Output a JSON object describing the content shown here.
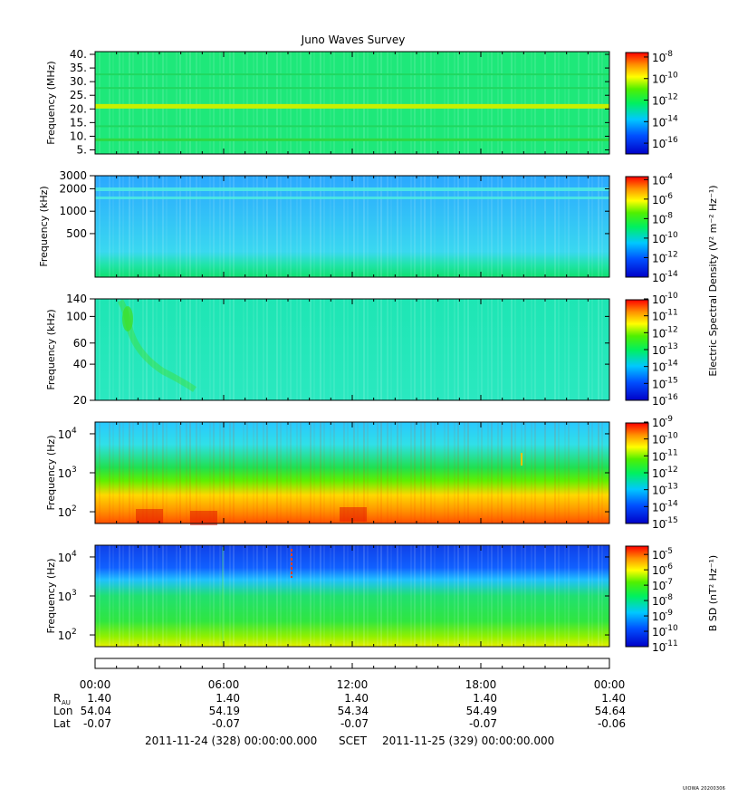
{
  "title": "Juno Waves Survey",
  "credit": "UIOWA 20200306",
  "chart_data": [
    {
      "type": "heatmap",
      "ylabel": "Frequency (MHz)",
      "yticks": [
        "5.",
        "10.",
        "15.",
        "20.",
        "25.",
        "30.",
        "35.",
        "40."
      ],
      "yrange": [
        3.5,
        41
      ],
      "yscale": "linear",
      "colorbar": {
        "ticks": [
          "-16",
          "-14",
          "-12",
          "-10",
          "-8"
        ],
        "range_exp": [
          -17,
          -7.5
        ]
      },
      "bands": [
        {
          "value_MHz": 21,
          "level": "yellow-green"
        },
        {
          "value_MHz": 8.5,
          "level": "green"
        }
      ],
      "background_level": "green"
    },
    {
      "type": "heatmap",
      "ylabel": "Frequency (kHz)",
      "yticks": [
        "500",
        "1000",
        "2000",
        "3000"
      ],
      "yrange": [
        130,
        3000
      ],
      "yscale": "log",
      "colorbar": {
        "ticks": [
          "-14",
          "-12",
          "-10",
          "-8",
          "-6",
          "-4"
        ],
        "range_exp": [
          -14,
          -3.6
        ]
      },
      "background_level": "cyan-blue"
    },
    {
      "type": "heatmap",
      "ylabel": "Frequency (kHz)",
      "yticks": [
        "20",
        "40",
        "60",
        "100",
        "140"
      ],
      "yrange": [
        20,
        140
      ],
      "yscale": "log",
      "colorbar": {
        "ticks": [
          "-16",
          "-15",
          "-14",
          "-13",
          "-12",
          "-11",
          "-10"
        ],
        "range_exp": [
          -16,
          -10
        ]
      },
      "background_level": "cyan-green"
    },
    {
      "type": "heatmap",
      "ylabel": "Frequency (Hz)",
      "yticks": [
        {
          "base": "10",
          "exp": "2"
        },
        {
          "base": "10",
          "exp": "3"
        },
        {
          "base": "10",
          "exp": "4"
        }
      ],
      "yrange": [
        50,
        20000
      ],
      "yscale": "log",
      "colorbar": {
        "ticks": [
          "-15",
          "-14",
          "-13",
          "-12",
          "-11",
          "-10",
          "-9"
        ],
        "range_exp": [
          -15,
          -9
        ]
      },
      "background_level": "cyan top, orange-red bottom"
    },
    {
      "type": "heatmap",
      "ylabel": "Frequency (Hz)",
      "yticks": [
        {
          "base": "10",
          "exp": "2"
        },
        {
          "base": "10",
          "exp": "3"
        },
        {
          "base": "10",
          "exp": "4"
        }
      ],
      "yrange": [
        50,
        20000
      ],
      "yscale": "log",
      "colorbar": {
        "ticks": [
          "-11",
          "-10",
          "-9",
          "-8",
          "-7",
          "-6",
          "-5"
        ],
        "range_exp": [
          -11,
          -4.4
        ]
      },
      "background_level": "blue top, green-yellow bottom"
    }
  ],
  "colorbar_labels": {
    "electric": "Electric Spectral Density (V² m⁻² Hz⁻¹)",
    "magnetic": "B SD (nT² Hz⁻¹)"
  },
  "time_axis": {
    "ticks": [
      "00:00",
      "06:00",
      "12:00",
      "18:00",
      "00:00"
    ],
    "rows": [
      {
        "label": "R",
        "sub": "AU",
        "values": [
          "1.40",
          "1.40",
          "1.40",
          "1.40",
          "1.40"
        ]
      },
      {
        "label": "Lon",
        "sub": "",
        "values": [
          "54.04",
          "54.19",
          "54.34",
          "54.49",
          "54.64"
        ]
      },
      {
        "label": "Lat",
        "sub": "",
        "values": [
          "-0.07",
          "-0.07",
          "-0.07",
          "-0.07",
          "-0.06"
        ]
      }
    ]
  },
  "footer": {
    "start": "2011-11-24 (328) 00:00:00.000",
    "frame": "SCET",
    "end": "2011-11-25 (329) 00:00:00.000"
  }
}
